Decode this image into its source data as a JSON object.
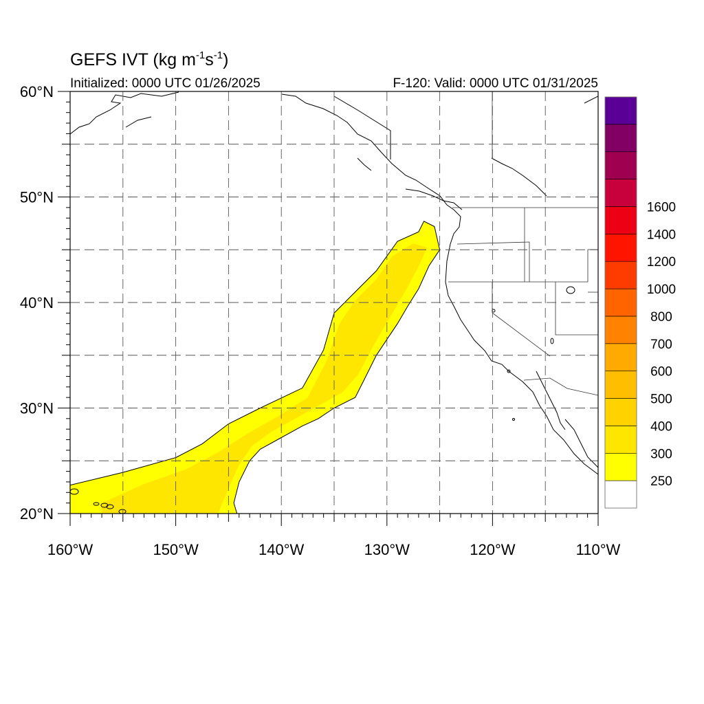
{
  "title": {
    "main": "GEFS IVT (kg m",
    "exp1": "-1",
    "mid": "s",
    "exp2": "-1",
    "end": ")"
  },
  "initialized": "Initialized: 0000 UTC 01/26/2025",
  "valid": "F-120: Valid: 0000 UTC 01/31/2025",
  "map": {
    "lon_range": [
      -160,
      -110
    ],
    "lat_range": [
      20,
      60
    ],
    "grid": "dashed",
    "lon_labels": [
      {
        "lon": -160,
        "text": "160°W"
      },
      {
        "lon": -150,
        "text": "150°W"
      },
      {
        "lon": -140,
        "text": "140°W"
      },
      {
        "lon": -130,
        "text": "130°W"
      },
      {
        "lon": -120,
        "text": "120°W"
      },
      {
        "lon": -110,
        "text": "110°W"
      }
    ],
    "lat_labels": [
      {
        "lat": 60,
        "text": "60°N"
      },
      {
        "lat": 50,
        "text": "50°N"
      },
      {
        "lat": 40,
        "text": "40°N"
      },
      {
        "lat": 30,
        "text": "30°N"
      },
      {
        "lat": 20,
        "text": "20°N"
      }
    ],
    "ivt_plume_outer": [
      [
        -160,
        20
      ],
      [
        -160,
        22.7
      ],
      [
        -155,
        23.9
      ],
      [
        -150,
        25.3
      ],
      [
        -147.5,
        26.6
      ],
      [
        -145,
        28.5
      ],
      [
        -142,
        30
      ],
      [
        -138,
        31.9
      ],
      [
        -136,
        35.5
      ],
      [
        -135,
        39
      ],
      [
        -133,
        41
      ],
      [
        -131,
        43
      ],
      [
        -129,
        45.8
      ],
      [
        -127,
        46.7
      ],
      [
        -126.5,
        47.7
      ],
      [
        -125.5,
        47.2
      ],
      [
        -125,
        45
      ],
      [
        -126,
        43.5
      ],
      [
        -127,
        41.3
      ],
      [
        -128,
        39.7
      ],
      [
        -129,
        38
      ],
      [
        -130,
        36.5
      ],
      [
        -131,
        35
      ],
      [
        -132,
        33
      ],
      [
        -133,
        31
      ],
      [
        -135,
        30
      ],
      [
        -136.5,
        29
      ],
      [
        -138,
        28.3
      ],
      [
        -140,
        27.2
      ],
      [
        -142,
        26.1
      ],
      [
        -143,
        25
      ],
      [
        -144,
        23
      ],
      [
        -144.5,
        21
      ],
      [
        -144.2,
        20
      ]
    ],
    "ivt_plume_core": [
      [
        -157,
        21
      ],
      [
        -153,
        22.8
      ],
      [
        -149,
        24.2
      ],
      [
        -146,
        25.8
      ],
      [
        -143,
        27.7
      ],
      [
        -140.5,
        29.1
      ],
      [
        -137.5,
        31
      ],
      [
        -135.7,
        34.5
      ],
      [
        -134.5,
        38
      ],
      [
        -133,
        40.2
      ],
      [
        -131,
        42.2
      ],
      [
        -129.5,
        44.4
      ],
      [
        -127.5,
        45.6
      ],
      [
        -126.2,
        45.2
      ],
      [
        -127,
        43.4
      ],
      [
        -128.3,
        41
      ],
      [
        -129.3,
        39.3
      ],
      [
        -130.3,
        37.6
      ],
      [
        -131.5,
        35.5
      ],
      [
        -132.7,
        33.2
      ],
      [
        -134.2,
        31.5
      ],
      [
        -136.3,
        30.3
      ],
      [
        -138.5,
        29.1
      ],
      [
        -141,
        27.7
      ],
      [
        -142.8,
        26.4
      ],
      [
        -144,
        24.6
      ],
      [
        -145,
        22.4
      ],
      [
        -146,
        20
      ],
      [
        -157,
        20
      ]
    ],
    "legend": {
      "colors": [
        "#ffffff",
        "#ffff00",
        "#ffe600",
        "#ffd200",
        "#ffbe00",
        "#ffaa00",
        "#ff8200",
        "#ff6400",
        "#ff3c00",
        "#ff1400",
        "#ee0014",
        "#c8003c",
        "#a00050",
        "#820064",
        "#5a0096"
      ],
      "labels": [
        "250",
        "300",
        "400",
        "500",
        "600",
        "700",
        "800",
        "1000",
        "1200",
        "1400",
        "1600"
      ]
    }
  }
}
